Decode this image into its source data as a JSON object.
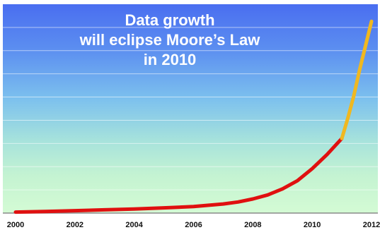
{
  "chart_data": {
    "type": "line",
    "title": [
      "Data growth",
      "will eclipse Moore’s Law",
      "in 2010"
    ],
    "xlabel": "",
    "ylabel": "",
    "x_ticks": [
      "2000",
      "2002",
      "2004",
      "2006",
      "2008",
      "2010",
      "2012"
    ],
    "xlim": [
      2000,
      2012
    ],
    "ylim": [
      0,
      100
    ],
    "grid": true,
    "series": [
      {
        "color": "#e01010",
        "x": [
          2000,
          2001,
          2002,
          2003,
          2004,
          2005,
          2006,
          2007,
          2007.5,
          2008,
          2008.5,
          2009,
          2009.5,
          2010,
          2010.5,
          2011
        ],
        "values": [
          0.5,
          0.8,
          1.2,
          1.6,
          2,
          2.6,
          3.2,
          4.5,
          5.5,
          7,
          9,
          12,
          16,
          22,
          29,
          37
        ]
      },
      {
        "color": "#f0b820",
        "x": [
          2011,
          2011.2,
          2011.4,
          2011.6,
          2011.8,
          2012
        ],
        "values": [
          37,
          47,
          58,
          71,
          83,
          95
        ]
      }
    ]
  }
}
